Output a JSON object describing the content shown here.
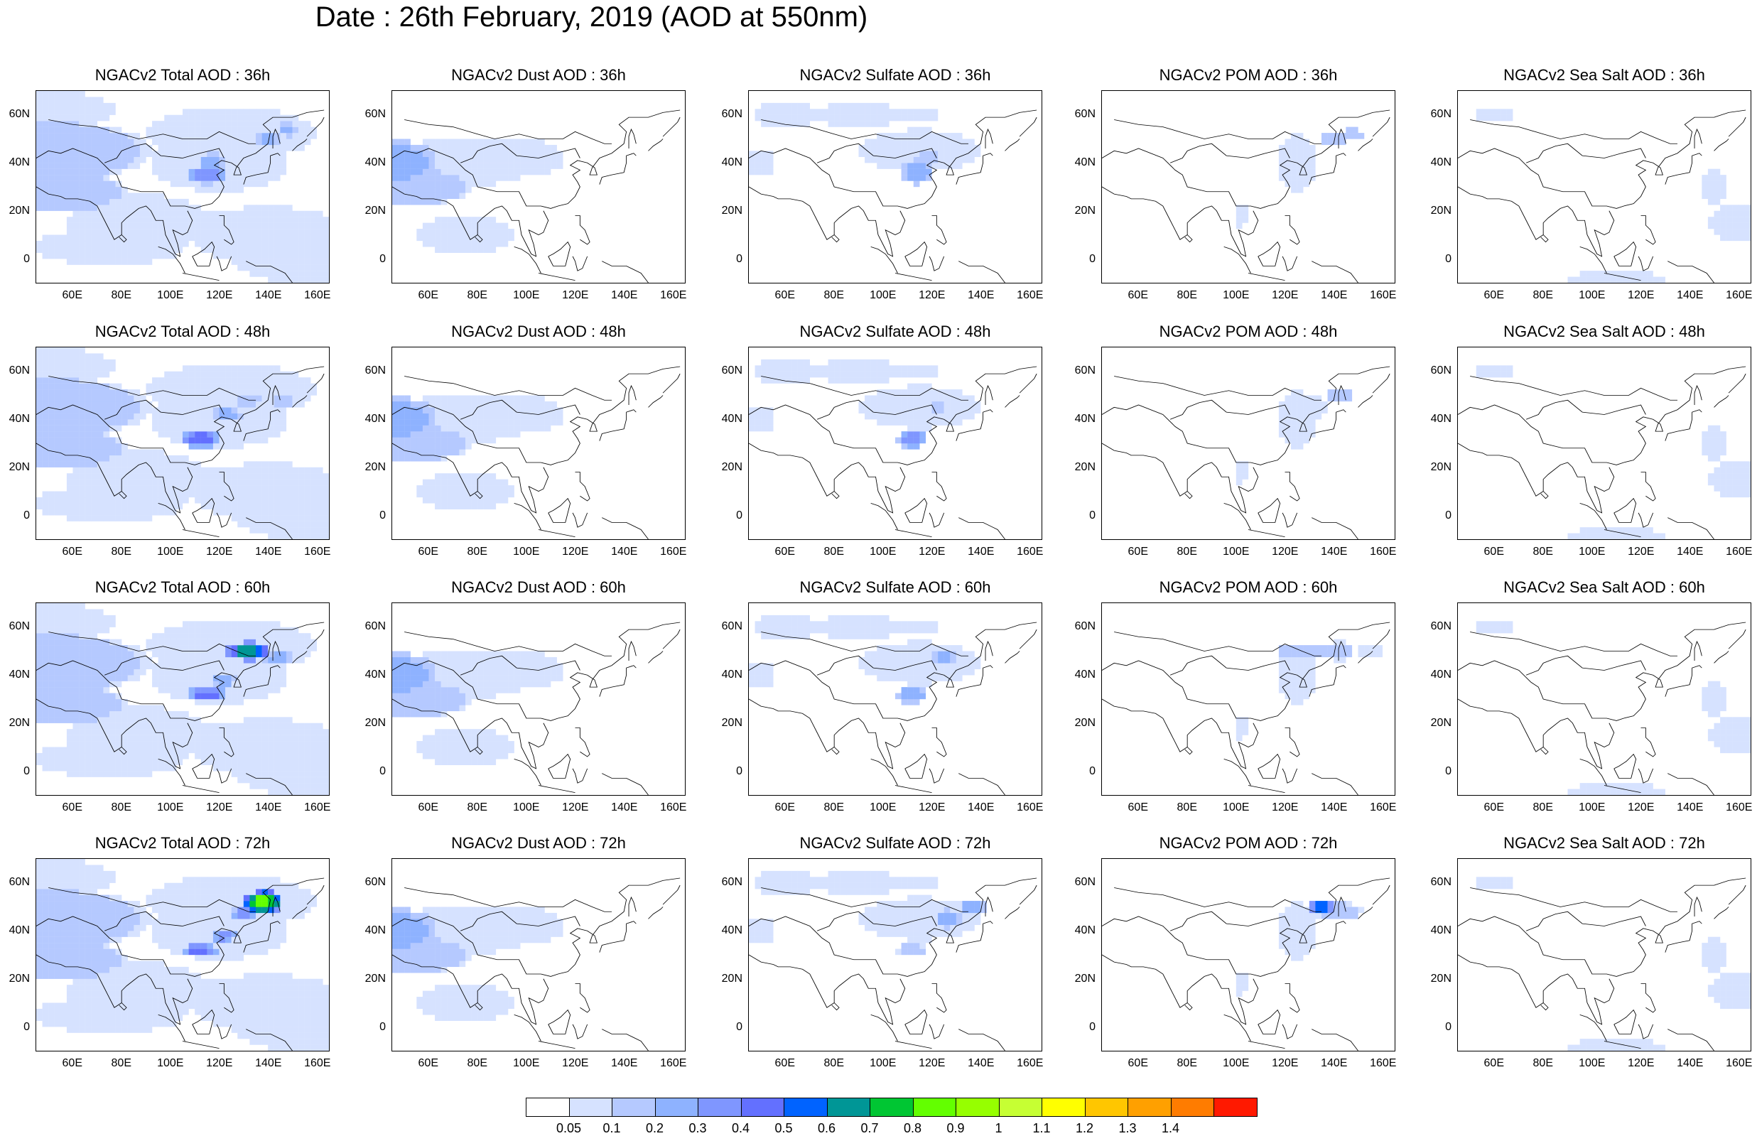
{
  "title": "Date : 26th February, 2019 (AOD at 550nm)",
  "colors": {
    "coast_lines": "#000000",
    "levels": [
      "#ffffff",
      "#d6e2ff",
      "#b5c9ff",
      "#8eb2ff",
      "#7f96ff",
      "#6370ff",
      "#0063ff",
      "#009696",
      "#00c633",
      "#63ff00",
      "#96ff00",
      "#c6ff33",
      "#ffff00",
      "#ffc600",
      "#ffa000",
      "#ff7c00",
      "#ff1900"
    ]
  },
  "axes": {
    "lon_ticks": [
      "60E",
      "80E",
      "100E",
      "120E",
      "140E",
      "160E"
    ],
    "lat_ticks": [
      "60N",
      "40N",
      "20N",
      "0"
    ],
    "lon_range": [
      45,
      165
    ],
    "lat_range": [
      -10,
      70
    ]
  },
  "panels": [
    [
      {
        "title": "NGACv2 Total AOD : 36h",
        "species": "total"
      },
      {
        "title": "NGACv2 Dust AOD : 36h",
        "species": "dust"
      },
      {
        "title": "NGACv2 Sulfate AOD : 36h",
        "species": "sulfate"
      },
      {
        "title": "NGACv2 POM AOD : 36h",
        "species": "pom"
      },
      {
        "title": "NGACv2 Sea Salt AOD : 36h",
        "species": "seasalt"
      }
    ],
    [
      {
        "title": "NGACv2 Total AOD : 48h",
        "species": "total"
      },
      {
        "title": "NGACv2 Dust AOD : 48h",
        "species": "dust"
      },
      {
        "title": "NGACv2 Sulfate AOD : 48h",
        "species": "sulfate"
      },
      {
        "title": "NGACv2 POM AOD : 48h",
        "species": "pom"
      },
      {
        "title": "NGACv2 Sea Salt AOD : 48h",
        "species": "seasalt"
      }
    ],
    [
      {
        "title": "NGACv2 Total AOD : 60h",
        "species": "total"
      },
      {
        "title": "NGACv2 Dust AOD : 60h",
        "species": "dust"
      },
      {
        "title": "NGACv2 Sulfate AOD : 60h",
        "species": "sulfate"
      },
      {
        "title": "NGACv2 POM AOD : 60h",
        "species": "pom"
      },
      {
        "title": "NGACv2 Sea Salt AOD : 60h",
        "species": "seasalt"
      }
    ],
    [
      {
        "title": "NGACv2 Total AOD : 72h",
        "species": "total"
      },
      {
        "title": "NGACv2 Dust AOD : 72h",
        "species": "dust"
      },
      {
        "title": "NGACv2 Sulfate AOD : 72h",
        "species": "sulfate"
      },
      {
        "title": "NGACv2 POM AOD : 72h",
        "species": "pom"
      },
      {
        "title": "NGACv2 Sea Salt  AOD : 72h",
        "species": "seasalt"
      }
    ]
  ],
  "colorbar": {
    "labels": [
      "0.05",
      "0.1",
      "0.2",
      "0.3",
      "0.4",
      "0.5",
      "0.6",
      "0.7",
      "0.8",
      "0.9",
      "1",
      "1.1",
      "1.2",
      "1.3",
      "1.4"
    ]
  }
}
